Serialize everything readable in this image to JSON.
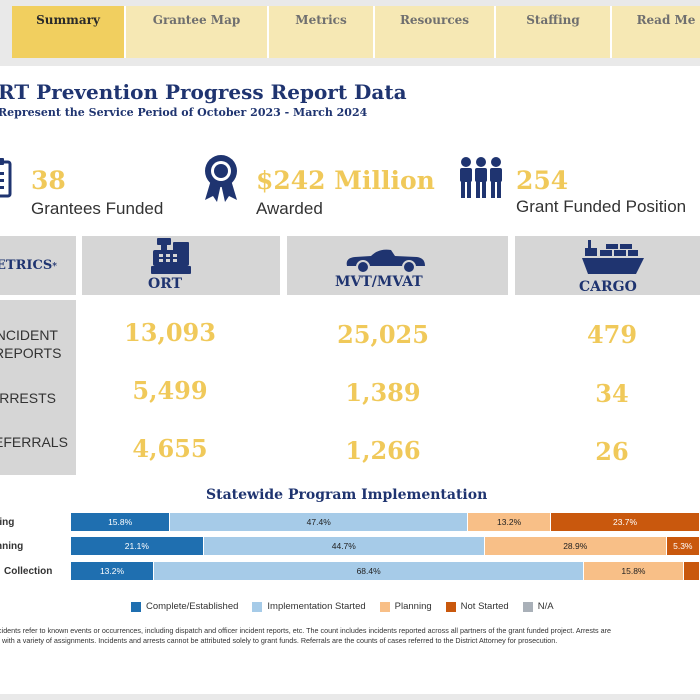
{
  "tabs": [
    {
      "label": "Summary",
      "active": true
    },
    {
      "label": "Grantee Map",
      "active": false
    },
    {
      "label": "Metrics",
      "active": false
    },
    {
      "label": "Resources",
      "active": false
    },
    {
      "label": "Staffing",
      "active": false
    },
    {
      "label": "Read Me",
      "active": false
    }
  ],
  "report": {
    "title": "RT Prevention Progress Report Data",
    "subtitle": "Represent the Service Period of October 2023 - March 2024"
  },
  "kpis": [
    {
      "value": "38",
      "label": "Grantees Funded",
      "icon": "clipboard-icon"
    },
    {
      "value": "$242 Million",
      "label": "Awarded",
      "icon": "award-ribbon-icon"
    },
    {
      "value": "254",
      "label": "Grant Funded Position",
      "icon": "people-group-icon"
    }
  ],
  "metrics": {
    "header_label": "ETRICS",
    "header_marker": "*",
    "columns": [
      {
        "label": "ORT",
        "icon": "cash-register-icon"
      },
      {
        "label": "MVT/MVAT",
        "icon": "car-icon"
      },
      {
        "label": "CARGO",
        "icon": "cargo-ship-icon"
      }
    ],
    "rows": [
      {
        "label_line1": "NCIDENT",
        "label_line2": "REPORTS",
        "values": [
          "13,093",
          "25,025",
          "479"
        ]
      },
      {
        "label_line1": "RRESTS",
        "label_line2": "",
        "values": [
          "5,499",
          "1,389",
          "34"
        ]
      },
      {
        "label_line1": "EFERRALS",
        "label_line2": "",
        "values": [
          "4,655",
          "1,266",
          "26"
        ]
      }
    ]
  },
  "implementation": {
    "title": "Statewide Program Implementation",
    "rows": [
      {
        "label": "fing",
        "segments": [
          15.8,
          47.4,
          13.2,
          23.7,
          0
        ],
        "labels": [
          "15.8%",
          "47.4%",
          "13.2%",
          "23.7%",
          ""
        ]
      },
      {
        "label": "nning",
        "segments": [
          21.1,
          44.7,
          28.9,
          5.3,
          0
        ],
        "labels": [
          "21.1%",
          "44.7%",
          "28.9%",
          "5.3%",
          ""
        ]
      },
      {
        "label": "Collection",
        "segments": [
          13.2,
          68.4,
          15.8,
          2.6,
          0
        ],
        "labels": [
          "13.2%",
          "68.4%",
          "15.8%",
          "",
          ""
        ]
      }
    ],
    "legend": [
      {
        "label": "Complete/Established",
        "color": "#1f6fb0"
      },
      {
        "label": "Implementation Started",
        "color": "#a6cbe8"
      },
      {
        "label": "Planning",
        "color": "#f8bf87"
      },
      {
        "label": "Not Started",
        "color": "#c9580d"
      },
      {
        "label": "N/A",
        "color": "#a9b0b8"
      }
    ]
  },
  "footnote": {
    "line1": "ncidents refer to known events or occurrences, including dispatch and officer incident reports, etc. The count includes incidents reported across all partners of the grant funded project. Arrests are",
    "line2": "rs with a variety of assignments. Incidents and arrests cannot be attributed solely to grant funds. Referrals are the counts of cases referred to the District Attorney for prosecution."
  }
}
